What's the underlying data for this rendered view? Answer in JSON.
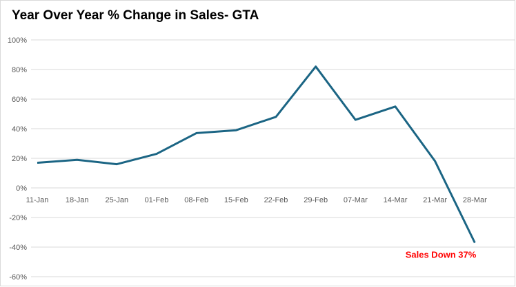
{
  "chart_data": {
    "type": "line",
    "title": "Year Over Year % Change in Sales- GTA",
    "xlabel": "",
    "ylabel": "",
    "categories": [
      "11-Jan",
      "18-Jan",
      "25-Jan",
      "01-Feb",
      "08-Feb",
      "15-Feb",
      "22-Feb",
      "29-Feb",
      "07-Mar",
      "14-Mar",
      "21-Mar",
      "28-Mar"
    ],
    "series": [
      {
        "values": [
          17,
          19,
          16,
          23,
          37,
          39,
          48,
          82,
          46,
          55,
          18,
          -37
        ]
      }
    ],
    "ylim": [
      -60,
      100
    ],
    "yticks": [
      100,
      80,
      60,
      40,
      20,
      0,
      -20,
      -40,
      -60
    ],
    "ytick_labels": [
      "100%",
      "80%",
      "60%",
      "40%",
      "20%",
      "0%",
      "-20%",
      "-40%",
      "-60%"
    ],
    "grid": true,
    "legend": "none",
    "line_color": "#1b6584",
    "annotation": {
      "text": "Sales Down 37%",
      "category": "28-Mar",
      "value": -37,
      "color": "#ff0000"
    }
  }
}
